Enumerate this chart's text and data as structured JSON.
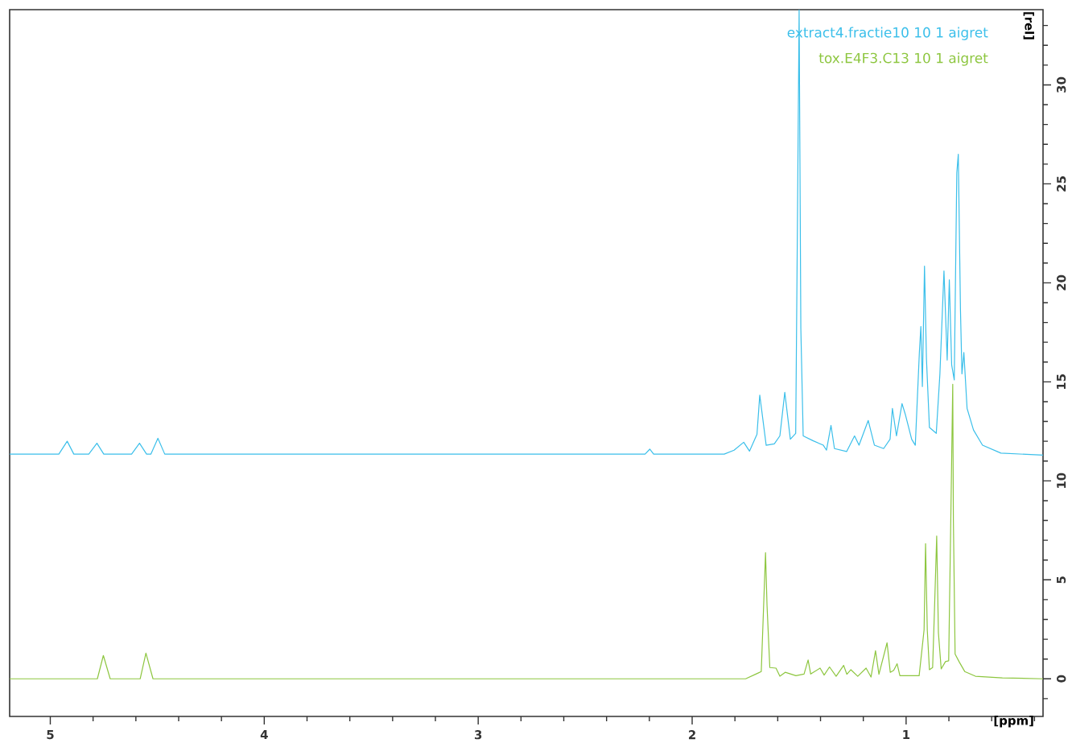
{
  "chart_data": {
    "type": "line",
    "xlabel": "[ppm]",
    "ylabel": "[rel]",
    "xlim": [
      5.19,
      0.36
    ],
    "ylim": [
      -1.9,
      33.8
    ],
    "xticks": [
      5,
      4,
      3,
      2,
      1,
      {
        "value": 4.8,
        "label": null
      },
      {
        "value": 4.6,
        "label": null
      },
      {
        "value": 4.4,
        "label": null
      },
      {
        "value": 4.2,
        "label": null
      },
      {
        "value": 3.8,
        "label": null
      },
      {
        "value": 3.6,
        "label": null
      },
      {
        "value": 3.4,
        "label": null
      },
      {
        "value": 3.2,
        "label": null
      },
      {
        "value": 2.8,
        "label": null
      },
      {
        "value": 2.6,
        "label": null
      },
      {
        "value": 2.4,
        "label": null
      },
      {
        "value": 2.2,
        "label": null
      },
      {
        "value": 1.8,
        "label": null
      },
      {
        "value": 1.6,
        "label": null
      },
      {
        "value": 1.4,
        "label": null
      },
      {
        "value": 1.2,
        "label": null
      },
      {
        "value": 0.8,
        "label": null
      },
      {
        "value": 0.6,
        "label": null
      },
      {
        "value": 0.4,
        "label": null
      }
    ],
    "yticks": [
      0,
      5,
      10,
      15,
      20,
      25,
      30,
      {
        "value": -1,
        "label": null
      },
      {
        "value": 1,
        "label": null
      },
      {
        "value": 2,
        "label": null
      },
      {
        "value": 3,
        "label": null
      },
      {
        "value": 4,
        "label": null
      },
      {
        "value": 6,
        "label": null
      },
      {
        "value": 7,
        "label": null
      },
      {
        "value": 8,
        "label": null
      },
      {
        "value": 9,
        "label": null
      },
      {
        "value": 11,
        "label": null
      },
      {
        "value": 12,
        "label": null
      },
      {
        "value": 13,
        "label": null
      },
      {
        "value": 14,
        "label": null
      },
      {
        "value": 16,
        "label": null
      },
      {
        "value": 17,
        "label": null
      },
      {
        "value": 18,
        "label": null
      },
      {
        "value": 19,
        "label": null
      },
      {
        "value": 21,
        "label": null
      },
      {
        "value": 22,
        "label": null
      },
      {
        "value": 23,
        "label": null
      },
      {
        "value": 24,
        "label": null
      },
      {
        "value": 26,
        "label": null
      },
      {
        "value": 27,
        "label": null
      },
      {
        "value": 28,
        "label": null
      },
      {
        "value": 29,
        "label": null
      },
      {
        "value": 31,
        "label": null
      },
      {
        "value": 32,
        "label": null
      },
      {
        "value": 33,
        "label": null
      }
    ],
    "legend": "top right",
    "line_style": "solid",
    "series": [
      {
        "name": "extract4.fractie10 10 1 aigret",
        "color": "#3bbfea",
        "x": [
          5.19,
          4.96,
          4.921,
          4.89,
          4.82,
          4.782,
          4.75,
          4.62,
          4.583,
          4.55,
          4.53,
          4.497,
          4.465,
          2.22,
          2.198,
          2.18,
          1.85,
          1.804,
          1.759,
          1.732,
          1.697,
          1.684,
          1.654,
          1.616,
          1.59,
          1.567,
          1.541,
          1.516,
          1.509,
          1.5,
          1.492,
          1.481,
          1.436,
          1.387,
          1.372,
          1.351,
          1.335,
          1.278,
          1.241,
          1.22,
          1.177,
          1.148,
          1.105,
          1.075,
          1.064,
          1.045,
          1.019,
          1.004,
          0.974,
          0.957,
          0.938,
          0.931,
          0.924,
          0.914,
          0.905,
          0.891,
          0.859,
          0.842,
          0.823,
          0.808,
          0.798,
          0.787,
          0.775,
          0.763,
          0.756,
          0.746,
          0.739,
          0.73,
          0.715,
          0.685,
          0.643,
          0.557,
          0.36
        ],
        "values": [
          11.35,
          11.35,
          12.0,
          11.35,
          11.35,
          11.9,
          11.35,
          11.35,
          11.9,
          11.35,
          11.35,
          12.15,
          11.35,
          11.35,
          11.6,
          11.35,
          11.35,
          11.55,
          11.95,
          11.5,
          12.35,
          14.33,
          11.8,
          11.87,
          12.27,
          14.47,
          12.1,
          12.4,
          21.5,
          33.8,
          17.7,
          12.27,
          12.03,
          11.8,
          11.55,
          12.8,
          11.63,
          11.48,
          12.27,
          11.8,
          13.05,
          11.8,
          11.63,
          12.1,
          13.66,
          12.27,
          13.9,
          13.37,
          12.1,
          11.8,
          16.48,
          17.8,
          14.76,
          20.85,
          16.2,
          12.7,
          12.4,
          15.4,
          20.6,
          16.1,
          20.15,
          15.85,
          15.1,
          25.55,
          26.5,
          18.67,
          15.4,
          16.48,
          13.66,
          12.57,
          11.8,
          11.4,
          11.3
        ]
      },
      {
        "name": "tox.E4F3.C13 10 1 aigret",
        "color": "#8dc63f",
        "x": [
          5.19,
          4.78,
          4.752,
          4.72,
          4.58,
          4.553,
          4.52,
          1.75,
          1.696,
          1.677,
          1.665,
          1.657,
          1.65,
          1.637,
          1.608,
          1.59,
          1.565,
          1.515,
          1.477,
          1.458,
          1.446,
          1.402,
          1.383,
          1.358,
          1.327,
          1.292,
          1.277,
          1.258,
          1.226,
          1.187,
          1.164,
          1.143,
          1.127,
          1.089,
          1.074,
          1.058,
          1.042,
          1.029,
          0.939,
          0.916,
          0.909,
          0.901,
          0.891,
          0.876,
          0.866,
          0.857,
          0.849,
          0.836,
          0.816,
          0.801,
          0.792,
          0.782,
          0.779,
          0.771,
          0.751,
          0.726,
          0.676,
          0.55,
          0.36
        ],
        "values": [
          0,
          0,
          1.18,
          0,
          0,
          1.3,
          0,
          0,
          0.27,
          0.37,
          3.96,
          6.37,
          3.7,
          0.57,
          0.54,
          0.13,
          0.33,
          0.16,
          0.24,
          0.95,
          0.24,
          0.54,
          0.19,
          0.6,
          0.13,
          0.68,
          0.23,
          0.46,
          0.13,
          0.54,
          0.09,
          1.42,
          0.23,
          1.82,
          0.33,
          0.43,
          0.76,
          0.16,
          0.16,
          2.47,
          6.83,
          2.47,
          0.46,
          0.57,
          3.96,
          7.21,
          2.33,
          0.5,
          0.87,
          0.91,
          7.35,
          14.88,
          8.02,
          1.25,
          0.84,
          0.37,
          0.13,
          0.05,
          0
        ]
      }
    ]
  }
}
